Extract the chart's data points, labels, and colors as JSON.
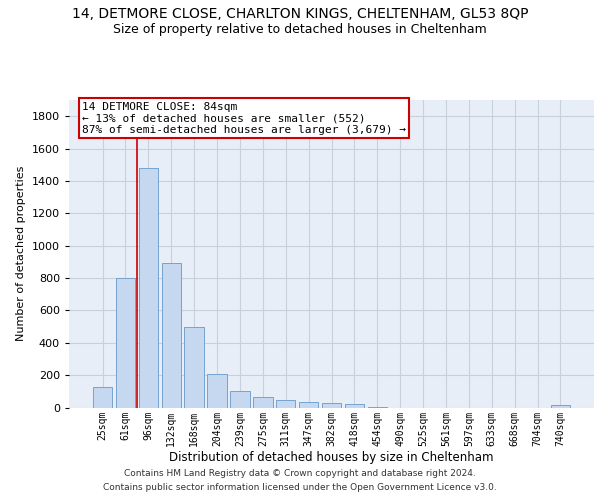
{
  "title": "14, DETMORE CLOSE, CHARLTON KINGS, CHELTENHAM, GL53 8QP",
  "subtitle": "Size of property relative to detached houses in Cheltenham",
  "xlabel": "Distribution of detached houses by size in Cheltenham",
  "ylabel": "Number of detached properties",
  "categories": [
    "25sqm",
    "61sqm",
    "96sqm",
    "132sqm",
    "168sqm",
    "204sqm",
    "239sqm",
    "275sqm",
    "311sqm",
    "347sqm",
    "382sqm",
    "418sqm",
    "454sqm",
    "490sqm",
    "525sqm",
    "561sqm",
    "597sqm",
    "633sqm",
    "668sqm",
    "704sqm",
    "740sqm"
  ],
  "values": [
    125,
    800,
    1480,
    890,
    500,
    205,
    105,
    65,
    45,
    35,
    30,
    20,
    5,
    0,
    0,
    0,
    0,
    0,
    0,
    0,
    15
  ],
  "bar_color": "#c5d8f0",
  "bar_edge_color": "#6699cc",
  "annotation_box_text": "14 DETMORE CLOSE: 84sqm\n← 13% of detached houses are smaller (552)\n87% of semi-detached houses are larger (3,679) →",
  "annotation_box_color": "#cc0000",
  "ylim": [
    0,
    1900
  ],
  "yticks": [
    0,
    200,
    400,
    600,
    800,
    1000,
    1200,
    1400,
    1600,
    1800
  ],
  "grid_color": "#c8d0dc",
  "background_color": "#e8eef8",
  "footer_line1": "Contains HM Land Registry data © Crown copyright and database right 2024.",
  "footer_line2": "Contains public sector information licensed under the Open Government Licence v3.0.",
  "title_fontsize": 10,
  "subtitle_fontsize": 9,
  "red_line_x": 1.5
}
